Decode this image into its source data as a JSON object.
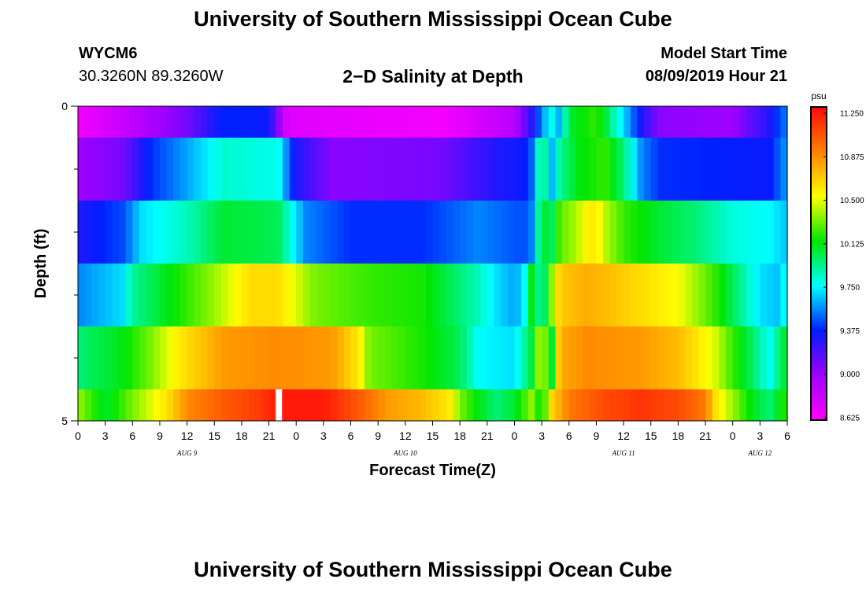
{
  "header": {
    "title": "University of Southern Mississippi Ocean Cube",
    "station_id": "WYCM6",
    "coords": "30.3260N 89.3260W",
    "plot_title": "2−D Salinity at Depth",
    "model_start_label": "Model Start Time",
    "model_start_value": "08/09/2019 Hour 21"
  },
  "footer": {
    "title": "University of Southern Mississippi Ocean Cube"
  },
  "chart_data": {
    "type": "heatmap",
    "title": "2−D Salinity at Depth",
    "xlabel": "Forecast Time(Z)",
    "ylabel": "Depth (ft)",
    "x_hours_range": [
      0,
      78
    ],
    "ylim": [
      0,
      5
    ],
    "y_tick_labels": [
      "0",
      "5"
    ],
    "x_tick_labels": [
      "0",
      "3",
      "6",
      "9",
      "12",
      "15",
      "18",
      "21",
      "0",
      "3",
      "6",
      "9",
      "12",
      "15",
      "18",
      "21",
      "0",
      "3",
      "6",
      "9",
      "12",
      "15",
      "18",
      "21",
      "0",
      "3",
      "6"
    ],
    "date_labels": [
      {
        "label": "AUG 9",
        "hour": 12
      },
      {
        "label": "AUG 10",
        "hour": 36
      },
      {
        "label": "AUG 11",
        "hour": 60
      },
      {
        "label": "AUG 12",
        "hour": 75
      }
    ],
    "colorbar": {
      "unit": "psu",
      "min": 8.625,
      "max": 11.25,
      "tick_values": [
        "11.250",
        "10.875",
        "10.500",
        "10.125",
        "9.750",
        "9.375",
        "9.000",
        "8.625"
      ]
    },
    "missing": [
      {
        "hour": 21.75,
        "layer": 5
      }
    ],
    "layers": [
      {
        "depth_range": [
          0,
          0.5
        ],
        "control_points": [
          [
            0,
            8.67
          ],
          [
            12,
            9.1
          ],
          [
            16,
            9.38
          ],
          [
            21,
            9.35
          ],
          [
            23,
            8.75
          ],
          [
            40,
            8.67
          ],
          [
            48,
            8.9
          ],
          [
            50,
            9.3
          ],
          [
            51,
            9.55
          ],
          [
            52,
            9.8
          ],
          [
            53,
            9.6
          ],
          [
            54,
            10.05
          ],
          [
            57,
            10.2
          ],
          [
            58,
            10.05
          ],
          [
            59,
            9.85
          ],
          [
            60,
            9.7
          ],
          [
            62,
            9.3
          ],
          [
            64,
            9.05
          ],
          [
            72,
            9.0
          ],
          [
            76,
            9.3
          ],
          [
            78,
            9.55
          ]
        ]
      },
      {
        "depth_range": [
          0.5,
          1.5
        ],
        "control_points": [
          [
            0,
            9.0
          ],
          [
            5,
            9.1
          ],
          [
            8,
            9.4
          ],
          [
            12,
            9.6
          ],
          [
            16,
            9.82
          ],
          [
            22,
            9.78
          ],
          [
            24,
            9.3
          ],
          [
            28,
            9.05
          ],
          [
            40,
            9.1
          ],
          [
            46,
            9.3
          ],
          [
            49,
            9.35
          ],
          [
            50,
            9.5
          ],
          [
            51,
            10.05
          ],
          [
            52,
            9.6
          ],
          [
            53,
            9.9
          ],
          [
            55,
            10.1
          ],
          [
            58,
            10.2
          ],
          [
            60,
            9.95
          ],
          [
            62,
            9.55
          ],
          [
            64,
            9.4
          ],
          [
            76,
            9.35
          ],
          [
            78,
            9.6
          ]
        ]
      },
      {
        "depth_range": [
          1.5,
          2.5
        ],
        "control_points": [
          [
            0,
            9.3
          ],
          [
            5,
            9.45
          ],
          [
            7,
            9.7
          ],
          [
            12,
            9.85
          ],
          [
            16,
            10.05
          ],
          [
            22,
            10.0
          ],
          [
            25,
            9.55
          ],
          [
            30,
            9.4
          ],
          [
            38,
            9.4
          ],
          [
            44,
            9.55
          ],
          [
            49,
            9.45
          ],
          [
            50,
            9.55
          ],
          [
            51,
            10.1
          ],
          [
            52,
            9.95
          ],
          [
            53,
            10.25
          ],
          [
            55,
            10.4
          ],
          [
            56,
            10.55
          ],
          [
            57,
            10.55
          ],
          [
            58,
            10.4
          ],
          [
            60,
            10.2
          ],
          [
            64,
            10.05
          ],
          [
            68,
            9.95
          ],
          [
            72,
            9.8
          ],
          [
            76,
            9.75
          ],
          [
            78,
            9.65
          ]
        ]
      },
      {
        "depth_range": [
          2.5,
          3.5
        ],
        "control_points": [
          [
            0,
            9.55
          ],
          [
            5,
            9.7
          ],
          [
            6,
            9.9
          ],
          [
            12,
            10.2
          ],
          [
            15,
            10.35
          ],
          [
            19,
            10.6
          ],
          [
            22,
            10.6
          ],
          [
            26,
            10.3
          ],
          [
            32,
            10.2
          ],
          [
            38,
            10.15
          ],
          [
            44,
            9.85
          ],
          [
            46,
            9.7
          ],
          [
            48,
            9.6
          ],
          [
            49,
            9.7
          ],
          [
            50,
            10.15
          ],
          [
            51,
            9.8
          ],
          [
            52,
            10.3
          ],
          [
            53,
            10.65
          ],
          [
            56,
            10.75
          ],
          [
            58,
            10.7
          ],
          [
            62,
            10.6
          ],
          [
            66,
            10.5
          ],
          [
            70,
            10.2
          ],
          [
            73,
            9.9
          ],
          [
            75,
            9.7
          ],
          [
            77,
            9.65
          ],
          [
            78,
            9.8
          ]
        ]
      },
      {
        "depth_range": [
          3.5,
          4.5
        ],
        "control_points": [
          [
            0,
            9.95
          ],
          [
            5,
            10.1
          ],
          [
            8,
            10.3
          ],
          [
            11,
            10.55
          ],
          [
            16,
            10.8
          ],
          [
            22,
            10.85
          ],
          [
            28,
            10.8
          ],
          [
            31,
            10.55
          ],
          [
            32,
            10.3
          ],
          [
            38,
            10.15
          ],
          [
            42,
            10.0
          ],
          [
            44,
            9.75
          ],
          [
            48,
            9.7
          ],
          [
            50,
            10.05
          ],
          [
            51,
            10.5
          ],
          [
            52,
            9.95
          ],
          [
            53,
            10.75
          ],
          [
            56,
            10.85
          ],
          [
            62,
            10.8
          ],
          [
            66,
            10.7
          ],
          [
            70,
            10.45
          ],
          [
            72,
            10.2
          ],
          [
            74,
            10.0
          ],
          [
            76,
            9.75
          ],
          [
            78,
            10.1
          ]
        ]
      },
      {
        "depth_range": [
          4.5,
          5
        ],
        "control_points": [
          [
            0,
            10.35
          ],
          [
            3,
            10.05
          ],
          [
            6,
            10.3
          ],
          [
            10,
            10.6
          ],
          [
            12,
            10.85
          ],
          [
            16,
            11.0
          ],
          [
            20,
            11.1
          ],
          [
            22,
            11.2
          ],
          [
            27,
            11.2
          ],
          [
            31,
            11.0
          ],
          [
            34,
            10.8
          ],
          [
            38,
            10.7
          ],
          [
            41,
            10.55
          ],
          [
            42,
            10.3
          ],
          [
            44,
            10.1
          ],
          [
            46,
            9.95
          ],
          [
            48,
            10.05
          ],
          [
            50,
            10.35
          ],
          [
            51,
            10.05
          ],
          [
            52,
            10.6
          ],
          [
            54,
            10.9
          ],
          [
            58,
            11.05
          ],
          [
            62,
            11.12
          ],
          [
            66,
            11.05
          ],
          [
            69,
            10.9
          ],
          [
            70,
            10.6
          ],
          [
            72,
            10.35
          ],
          [
            74,
            10.1
          ],
          [
            76,
            9.95
          ],
          [
            78,
            10.2
          ]
        ]
      }
    ],
    "grid": false,
    "legend": "right"
  }
}
